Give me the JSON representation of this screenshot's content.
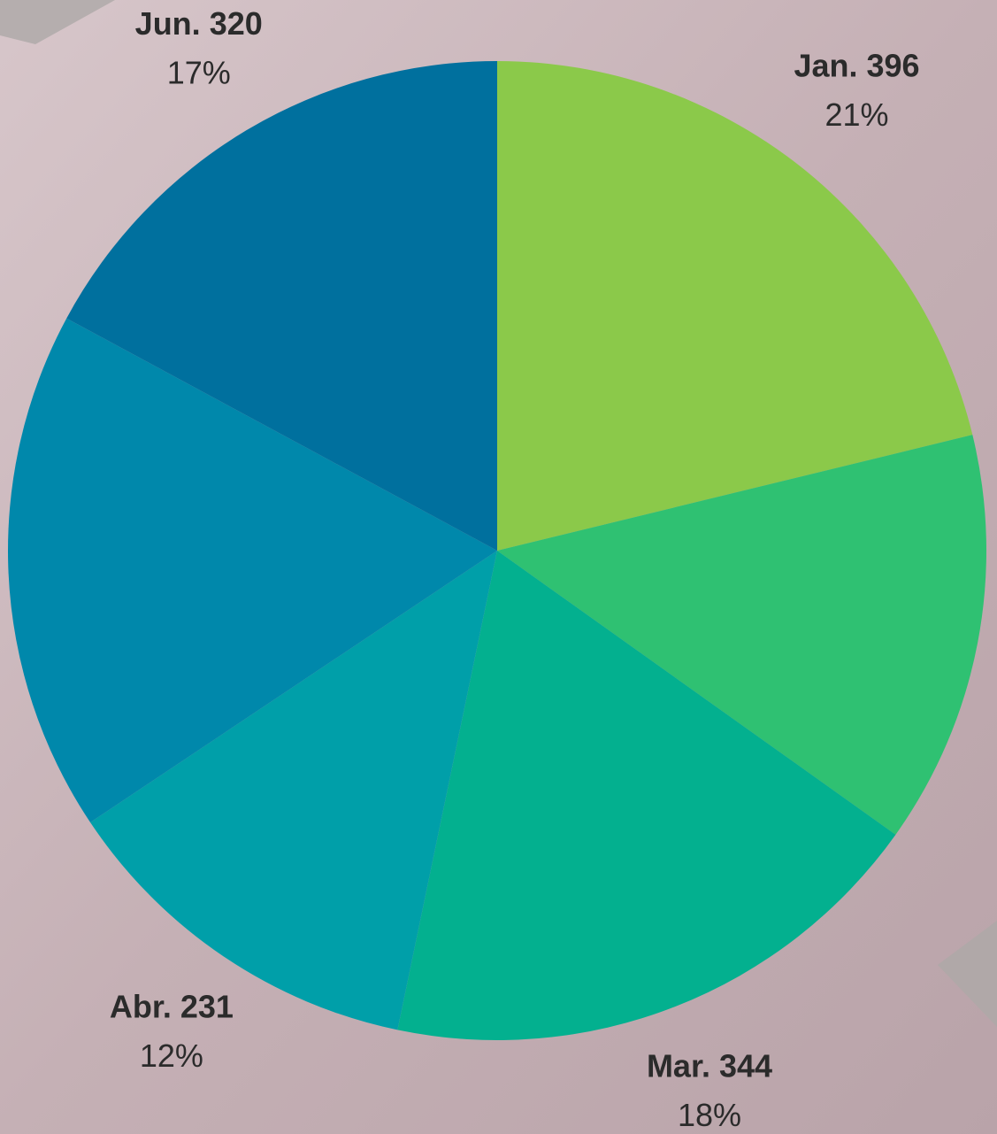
{
  "chart_data": {
    "type": "pie",
    "categories": [
      "Jan.",
      null,
      "Mar.",
      "Abr.",
      null,
      "Jun."
    ],
    "values": [
      396,
      255,
      344,
      231,
      322,
      320
    ],
    "percent_labels": [
      "21%",
      null,
      "18%",
      "12%",
      null,
      "17%"
    ],
    "colors": [
      "#8bc94a",
      "#2fc172",
      "#03b08f",
      "#009fa9",
      "#0088ab",
      "#00709e"
    ]
  }
}
